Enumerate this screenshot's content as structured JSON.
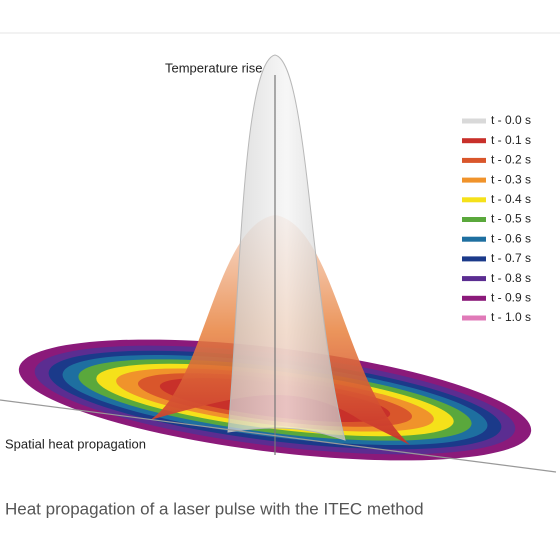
{
  "diagram": {
    "axis_labels": {
      "vertical": "Temperature rise",
      "horizontal": "Spatial heat propagation"
    },
    "legend": [
      {
        "label": "t - 0.0 s",
        "color": "#d9d9d9"
      },
      {
        "label": "t - 0.1 s",
        "color": "#c8302a"
      },
      {
        "label": "t - 0.2 s",
        "color": "#d9562b"
      },
      {
        "label": "t - 0.3 s",
        "color": "#f0932b"
      },
      {
        "label": "t - 0.4 s",
        "color": "#f5e11a"
      },
      {
        "label": "t - 0.5 s",
        "color": "#5aa83c"
      },
      {
        "label": "t - 0.6 s",
        "color": "#1e6fa0"
      },
      {
        "label": "t - 0.7 s",
        "color": "#1b3a8a"
      },
      {
        "label": "t - 0.8 s",
        "color": "#5b2d91"
      },
      {
        "label": "t - 0.9 s",
        "color": "#8b1a7a"
      },
      {
        "label": "t - 1.0 s",
        "color": "#e07ab8"
      }
    ],
    "caption": "Heat propagation of a laser pulse with the ITEC method"
  }
}
